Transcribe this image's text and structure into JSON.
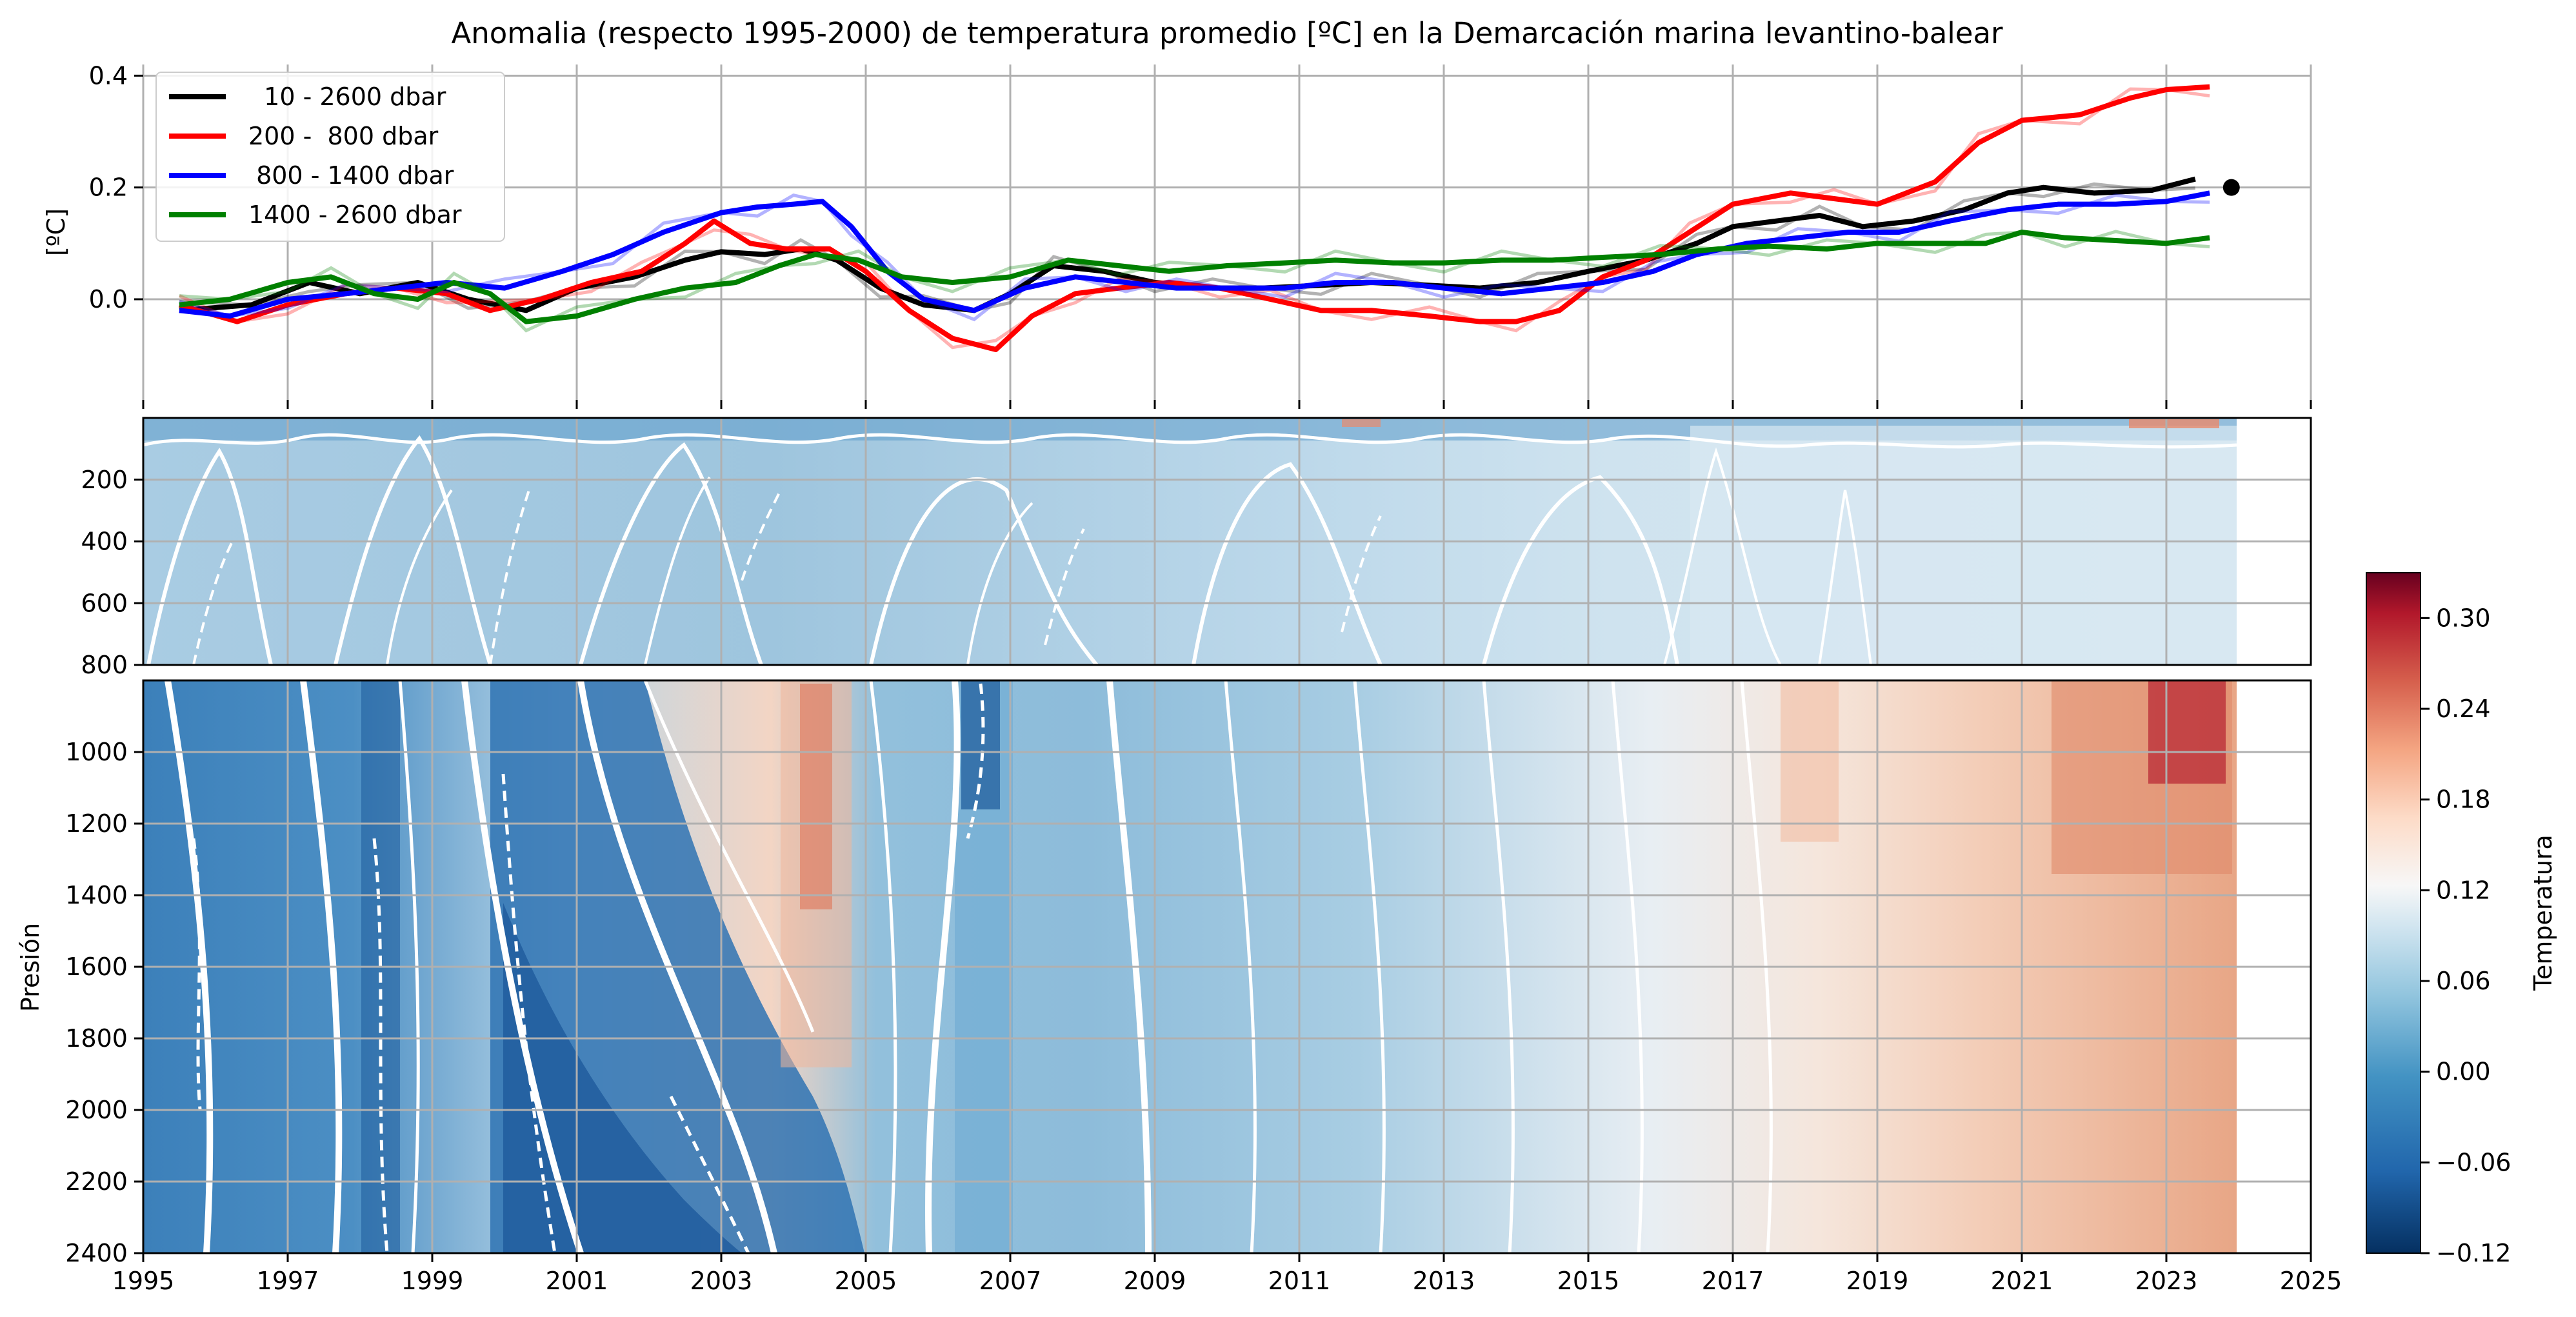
{
  "title": "Anomalia (respecto 1995-2000) de temperatura promedio [ºC] en la Demarcación marina levantino-balear",
  "colors": {
    "total": "#000000",
    "intermediate": "#ff0000",
    "deep_upper": "#0000ff",
    "deep_lower": "#008000",
    "grid": "#b0b0b0",
    "contour": "#ffffff"
  },
  "chart_data": [
    {
      "type": "line",
      "ylabel": "[ºC]",
      "ylim": [
        -0.18,
        0.42
      ],
      "xlim": [
        1995,
        2025
      ],
      "y_ticks": [
        "0.0",
        "0.2",
        "0.4"
      ],
      "grid": true,
      "legend_position": "top-left",
      "marker": {
        "x": 2023.9,
        "y": 0.2
      },
      "series": [
        {
          "name": "  10 - 2600 dbar",
          "color": "#000000",
          "x": [
            1995.5,
            1996.5,
            1997.3,
            1998.0,
            1998.8,
            1999.5,
            2000.3,
            2001.0,
            2001.8,
            2002.5,
            2003.0,
            2003.6,
            2004.1,
            2004.6,
            2005.2,
            2005.8,
            2006.5,
            2007.0,
            2007.6,
            2008.3,
            2009.0,
            2009.8,
            2010.5,
            2011.3,
            2012.0,
            2012.8,
            2013.5,
            2014.3,
            2015.0,
            2015.8,
            2016.5,
            2017.0,
            2017.6,
            2018.2,
            2018.8,
            2019.5,
            2020.2,
            2020.8,
            2021.3,
            2022.0,
            2022.8,
            2023.4
          ],
          "values": [
            -0.02,
            -0.01,
            0.03,
            0.01,
            0.03,
            0.0,
            -0.02,
            0.02,
            0.04,
            0.07,
            0.085,
            0.08,
            0.09,
            0.07,
            0.02,
            -0.01,
            -0.02,
            0.01,
            0.06,
            0.05,
            0.03,
            0.02,
            0.02,
            0.025,
            0.03,
            0.025,
            0.02,
            0.03,
            0.05,
            0.07,
            0.1,
            0.13,
            0.14,
            0.15,
            0.13,
            0.14,
            0.16,
            0.19,
            0.2,
            0.19,
            0.195,
            0.215
          ]
        },
        {
          "name": "200 -  800 dbar",
          "color": "#ff0000",
          "x": [
            1995.5,
            1996.3,
            1997.0,
            1997.8,
            1998.5,
            1999.2,
            1999.8,
            2000.5,
            2001.2,
            2001.9,
            2002.5,
            2002.9,
            2003.4,
            2003.9,
            2004.5,
            2005.0,
            2005.6,
            2006.2,
            2006.8,
            2007.3,
            2007.9,
            2008.5,
            2009.2,
            2009.9,
            2010.6,
            2011.3,
            2012.0,
            2012.8,
            2013.5,
            2014.0,
            2014.6,
            2015.2,
            2015.8,
            2016.4,
            2017.0,
            2017.8,
            2018.4,
            2019.0,
            2019.8,
            2020.4,
            2021.0,
            2021.8,
            2022.5,
            2023.0,
            2023.6
          ],
          "values": [
            -0.01,
            -0.04,
            -0.01,
            0.01,
            0.02,
            0.01,
            -0.02,
            0.0,
            0.03,
            0.05,
            0.1,
            0.14,
            0.1,
            0.09,
            0.09,
            0.05,
            -0.02,
            -0.07,
            -0.09,
            -0.03,
            0.01,
            0.02,
            0.03,
            0.02,
            0.0,
            -0.02,
            -0.02,
            -0.03,
            -0.04,
            -0.04,
            -0.02,
            0.04,
            0.07,
            0.12,
            0.17,
            0.19,
            0.18,
            0.17,
            0.21,
            0.28,
            0.32,
            0.33,
            0.36,
            0.375,
            0.38
          ]
        },
        {
          "name": " 800 - 1400 dbar",
          "color": "#0000ff",
          "x": [
            1995.5,
            1996.2,
            1997.0,
            1997.8,
            1998.5,
            1999.2,
            2000.0,
            2000.8,
            2001.5,
            2002.2,
            2003.0,
            2003.5,
            2004.0,
            2004.4,
            2004.8,
            2005.3,
            2005.8,
            2006.5,
            2007.2,
            2007.9,
            2008.6,
            2009.3,
            2010.0,
            2010.8,
            2011.5,
            2012.3,
            2013.0,
            2013.8,
            2014.5,
            2015.2,
            2015.9,
            2016.5,
            2017.2,
            2017.9,
            2018.6,
            2019.3,
            2020.0,
            2020.8,
            2021.5,
            2022.3,
            2023.0,
            2023.6
          ],
          "values": [
            -0.02,
            -0.03,
            0.0,
            0.01,
            0.02,
            0.03,
            0.02,
            0.05,
            0.08,
            0.12,
            0.155,
            0.165,
            0.17,
            0.175,
            0.13,
            0.05,
            0.0,
            -0.02,
            0.02,
            0.04,
            0.03,
            0.02,
            0.02,
            0.02,
            0.03,
            0.03,
            0.02,
            0.01,
            0.02,
            0.03,
            0.05,
            0.08,
            0.1,
            0.11,
            0.12,
            0.12,
            0.14,
            0.16,
            0.17,
            0.17,
            0.175,
            0.19
          ]
        },
        {
          "name": "1400 - 2600 dbar",
          "color": "#008000",
          "x": [
            1995.5,
            1996.2,
            1997.0,
            1997.6,
            1998.2,
            1998.8,
            1999.3,
            1999.8,
            2000.3,
            2001.0,
            2001.8,
            2002.5,
            2003.2,
            2003.8,
            2004.3,
            2004.9,
            2005.5,
            2006.2,
            2007.0,
            2007.8,
            2008.5,
            2009.2,
            2010.0,
            2010.8,
            2011.5,
            2012.3,
            2013.0,
            2013.8,
            2014.5,
            2015.2,
            2016.0,
            2016.8,
            2017.5,
            2018.3,
            2019.0,
            2019.8,
            2020.5,
            2021.0,
            2021.6,
            2022.3,
            2023.0,
            2023.6
          ],
          "values": [
            -0.01,
            0.0,
            0.03,
            0.04,
            0.01,
            0.0,
            0.03,
            0.01,
            -0.04,
            -0.03,
            0.0,
            0.02,
            0.03,
            0.06,
            0.08,
            0.07,
            0.04,
            0.03,
            0.04,
            0.07,
            0.06,
            0.05,
            0.06,
            0.065,
            0.07,
            0.065,
            0.065,
            0.07,
            0.07,
            0.075,
            0.08,
            0.09,
            0.095,
            0.09,
            0.1,
            0.1,
            0.1,
            0.12,
            0.11,
            0.105,
            0.1,
            0.11
          ]
        }
      ]
    },
    {
      "type": "heatmap",
      "ylabel": "",
      "ylim": [
        800,
        0
      ],
      "xlim": [
        1995,
        2025
      ],
      "y_ticks": [
        "200",
        "400",
        "600",
        "800"
      ],
      "grid": true
    },
    {
      "type": "heatmap",
      "ylabel": "Presión",
      "xlabel": "",
      "ylim": [
        2400,
        800
      ],
      "xlim": [
        1995,
        2025
      ],
      "x_ticks": [
        "1995",
        "1997",
        "1999",
        "2001",
        "2003",
        "2005",
        "2007",
        "2009",
        "2011",
        "2013",
        "2015",
        "2017",
        "2019",
        "2021",
        "2023",
        "2025"
      ],
      "y_ticks": [
        "1000",
        "1200",
        "1400",
        "1600",
        "1800",
        "2000",
        "2200",
        "2400"
      ],
      "grid": true
    },
    {
      "type": "colorbar",
      "label": "Temperatura",
      "range": [
        -0.12,
        0.33
      ],
      "ticks": [
        "0.30",
        "0.24",
        "0.18",
        "0.12",
        "0.06",
        "0.00",
        "−0.06",
        "−0.12"
      ],
      "colormap": "RdBu_r"
    }
  ]
}
